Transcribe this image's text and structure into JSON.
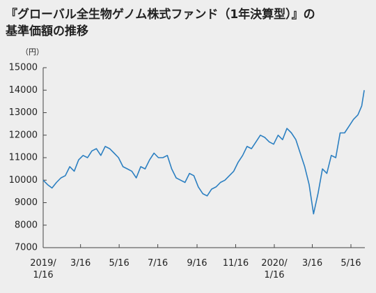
{
  "chart_data": {
    "type": "line",
    "title": [
      "『グローバル全生物ゲノム株式ファンド（1年決算型）』の",
      "基準価額の推移"
    ],
    "y_unit": "（円）",
    "color": "#2b7fc1",
    "grid": false,
    "x": [
      "2019-01-16",
      "2019-01-23",
      "2019-01-30",
      "2019-02-06",
      "2019-02-13",
      "2019-02-20",
      "2019-02-27",
      "2019-03-06",
      "2019-03-13",
      "2019-03-20",
      "2019-03-27",
      "2019-04-03",
      "2019-04-10",
      "2019-04-17",
      "2019-04-24",
      "2019-05-01",
      "2019-05-08",
      "2019-05-15",
      "2019-05-22",
      "2019-05-29",
      "2019-06-05",
      "2019-06-12",
      "2019-06-19",
      "2019-06-26",
      "2019-07-03",
      "2019-07-10",
      "2019-07-17",
      "2019-07-24",
      "2019-07-31",
      "2019-08-07",
      "2019-08-14",
      "2019-08-21",
      "2019-08-28",
      "2019-09-04",
      "2019-09-11",
      "2019-09-18",
      "2019-09-25",
      "2019-10-02",
      "2019-10-09",
      "2019-10-16",
      "2019-10-23",
      "2019-10-30",
      "2019-11-06",
      "2019-11-13",
      "2019-11-20",
      "2019-11-27",
      "2019-12-04",
      "2019-12-11",
      "2019-12-18",
      "2019-12-25",
      "2020-01-01",
      "2020-01-08",
      "2020-01-15",
      "2020-01-22",
      "2020-01-29",
      "2020-02-05",
      "2020-02-12",
      "2020-02-19",
      "2020-02-26",
      "2020-03-04",
      "2020-03-11",
      "2020-03-18",
      "2020-03-25",
      "2020-04-01",
      "2020-04-08",
      "2020-04-15",
      "2020-04-22",
      "2020-04-29",
      "2020-05-06",
      "2020-05-13",
      "2020-05-20",
      "2020-05-27",
      "2020-06-02",
      "2020-06-06"
    ],
    "values": [
      10000,
      9800,
      9650,
      9900,
      10100,
      10200,
      10600,
      10400,
      10900,
      11100,
      11000,
      11300,
      11400,
      11100,
      11500,
      11400,
      11200,
      11000,
      10600,
      10500,
      10400,
      10100,
      10600,
      10500,
      10900,
      11200,
      11000,
      11000,
      11100,
      10500,
      10100,
      10000,
      9900,
      10300,
      10200,
      9700,
      9400,
      9300,
      9600,
      9700,
      9900,
      10000,
      10200,
      10400,
      10800,
      11100,
      11500,
      11400,
      11700,
      12000,
      11900,
      11700,
      11600,
      12000,
      11800,
      12300,
      12100,
      11800,
      11200,
      10600,
      9800,
      8500,
      9400,
      10500,
      10300,
      11100,
      11000,
      12100,
      12100,
      12400,
      12700,
      12900,
      13300,
      14000
    ],
    "xlim": [
      "2019-01-16",
      "2020-06-07"
    ],
    "xticks": [
      {
        "value": "2019-01-16",
        "label": "2019/\n1/16"
      },
      {
        "value": "2019-03-16",
        "label": "3/16"
      },
      {
        "value": "2019-05-16",
        "label": "5/16"
      },
      {
        "value": "2019-07-16",
        "label": "7/16"
      },
      {
        "value": "2019-09-16",
        "label": "9/16"
      },
      {
        "value": "2019-11-16",
        "label": "11/16"
      },
      {
        "value": "2020-01-16",
        "label": "2020/\n1/16"
      },
      {
        "value": "2020-03-16",
        "label": "3/16"
      },
      {
        "value": "2020-05-16",
        "label": "5/16"
      }
    ],
    "ylim": [
      7000,
      15000
    ],
    "yticks": [
      7000,
      8000,
      9000,
      10000,
      11000,
      12000,
      13000,
      14000,
      15000
    ]
  }
}
